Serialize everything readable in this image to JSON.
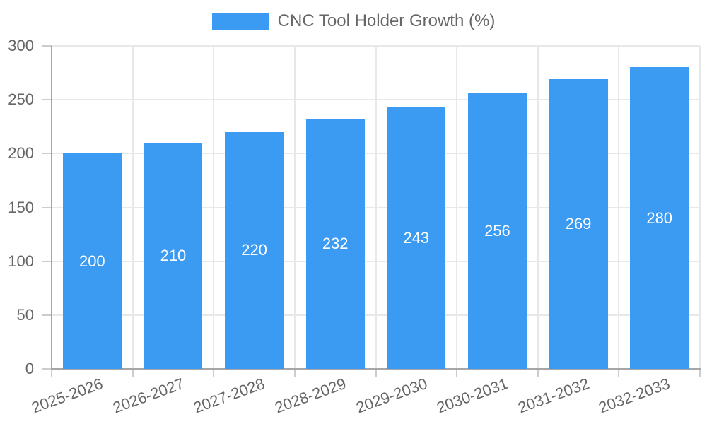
{
  "legend": {
    "label": "CNC Tool Holder Growth (%)"
  },
  "chart_data": {
    "type": "bar",
    "title": "CNC Tool Holder Growth (%)",
    "categories": [
      "2025-2026",
      "2026-2027",
      "2027-2028",
      "2028-2029",
      "2029-2030",
      "2030-2031",
      "2031-2032",
      "2032-2033"
    ],
    "values": [
      200,
      210,
      220,
      232,
      243,
      256,
      269,
      280
    ],
    "xlabel": "",
    "ylabel": "",
    "ylim": [
      0,
      300
    ],
    "yticks": [
      0,
      50,
      100,
      150,
      200,
      250,
      300
    ],
    "grid": true,
    "legend_position": "top",
    "value_labels": "inside-center",
    "colors": {
      "bar": "#3b9af2",
      "grid": "#e8e8e8",
      "axis_border": "#a6a6a6",
      "tick_mark": "#cccccc",
      "tick_text": "#666666",
      "value_label_text": "#ffffff",
      "background": "#ffffff"
    }
  }
}
